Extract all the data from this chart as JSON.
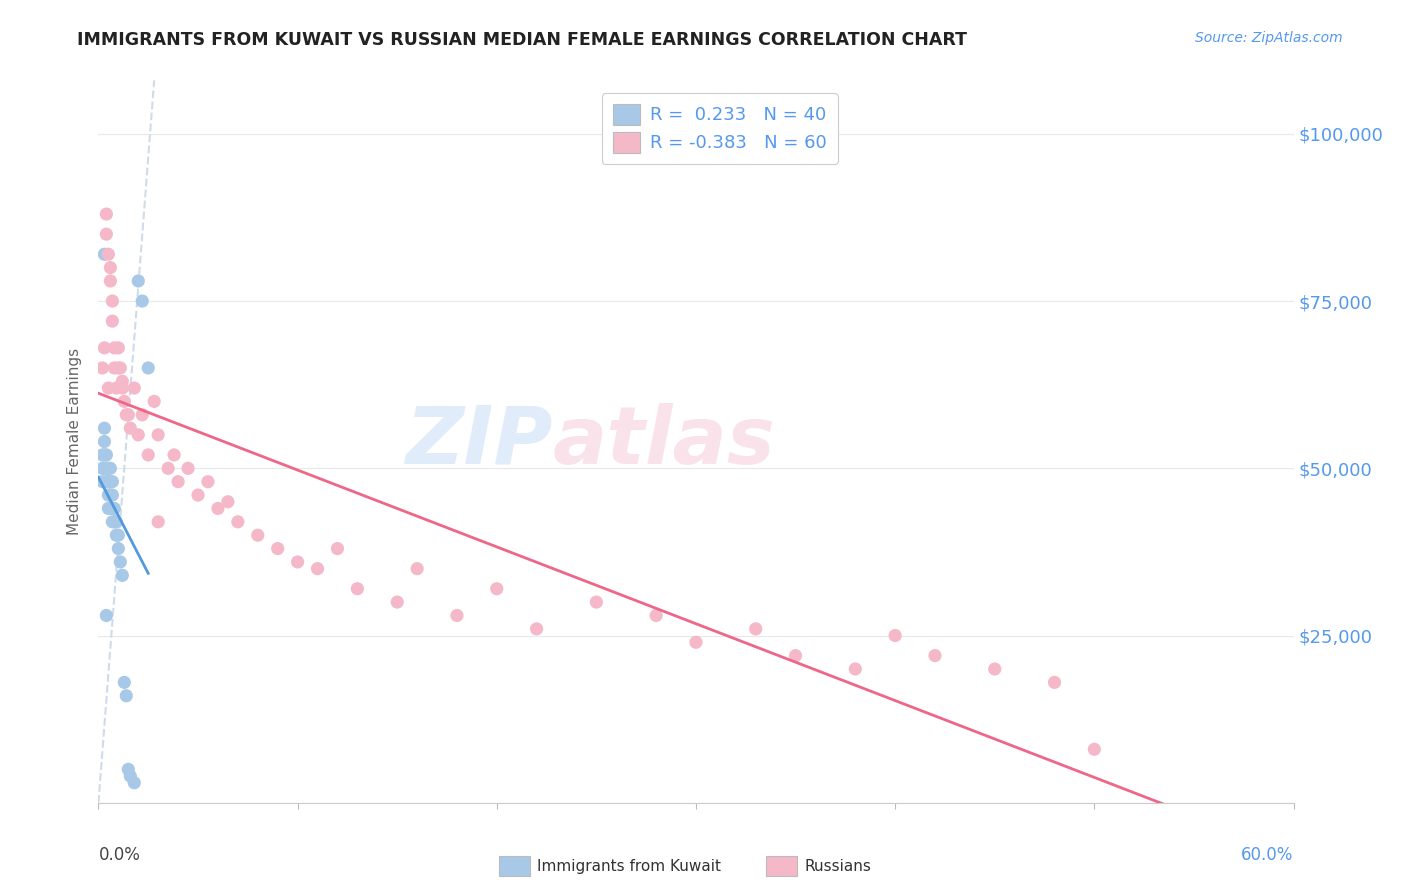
{
  "title": "IMMIGRANTS FROM KUWAIT VS RUSSIAN MEDIAN FEMALE EARNINGS CORRELATION CHART",
  "source": "Source: ZipAtlas.com",
  "ylabel": "Median Female Earnings",
  "yticks": [
    0,
    25000,
    50000,
    75000,
    100000
  ],
  "ytick_labels": [
    "",
    "$25,000",
    "$50,000",
    "$75,000",
    "$100,000"
  ],
  "xlim": [
    0.0,
    0.6
  ],
  "ylim": [
    0,
    108000
  ],
  "kuwait_color": "#a8c8e8",
  "russian_color": "#f5b8c8",
  "kuwait_line_color": "#5599dd",
  "russian_line_color": "#ee6688",
  "ref_line_color": "#c8d8e8",
  "background_color": "#ffffff",
  "grid_color": "#e8e8e8",
  "kuwait_points_x": [
    0.002,
    0.002,
    0.002,
    0.003,
    0.003,
    0.003,
    0.003,
    0.004,
    0.004,
    0.004,
    0.005,
    0.005,
    0.005,
    0.005,
    0.006,
    0.006,
    0.006,
    0.006,
    0.007,
    0.007,
    0.007,
    0.007,
    0.008,
    0.008,
    0.009,
    0.009,
    0.01,
    0.01,
    0.011,
    0.012,
    0.013,
    0.014,
    0.015,
    0.016,
    0.018,
    0.02,
    0.022,
    0.025,
    0.003,
    0.004
  ],
  "kuwait_points_y": [
    48000,
    50000,
    52000,
    50000,
    52000,
    54000,
    56000,
    48000,
    50000,
    52000,
    44000,
    46000,
    48000,
    50000,
    44000,
    46000,
    48000,
    50000,
    42000,
    44000,
    46000,
    48000,
    42000,
    44000,
    40000,
    42000,
    38000,
    40000,
    36000,
    34000,
    18000,
    16000,
    5000,
    4000,
    3000,
    78000,
    75000,
    65000,
    82000,
    28000
  ],
  "russian_points_x": [
    0.002,
    0.003,
    0.004,
    0.005,
    0.006,
    0.007,
    0.008,
    0.009,
    0.01,
    0.011,
    0.012,
    0.013,
    0.015,
    0.016,
    0.018,
    0.02,
    0.022,
    0.025,
    0.028,
    0.03,
    0.035,
    0.038,
    0.04,
    0.045,
    0.05,
    0.055,
    0.06,
    0.065,
    0.07,
    0.08,
    0.09,
    0.1,
    0.11,
    0.12,
    0.13,
    0.15,
    0.16,
    0.18,
    0.2,
    0.22,
    0.25,
    0.28,
    0.3,
    0.33,
    0.35,
    0.38,
    0.4,
    0.42,
    0.45,
    0.48,
    0.004,
    0.005,
    0.006,
    0.007,
    0.008,
    0.01,
    0.012,
    0.014,
    0.5,
    0.03
  ],
  "russian_points_y": [
    65000,
    68000,
    85000,
    62000,
    80000,
    75000,
    65000,
    62000,
    68000,
    65000,
    63000,
    60000,
    58000,
    56000,
    62000,
    55000,
    58000,
    52000,
    60000,
    55000,
    50000,
    52000,
    48000,
    50000,
    46000,
    48000,
    44000,
    45000,
    42000,
    40000,
    38000,
    36000,
    35000,
    38000,
    32000,
    30000,
    35000,
    28000,
    32000,
    26000,
    30000,
    28000,
    24000,
    26000,
    22000,
    20000,
    25000,
    22000,
    20000,
    18000,
    88000,
    82000,
    78000,
    72000,
    68000,
    65000,
    62000,
    58000,
    8000,
    42000
  ]
}
